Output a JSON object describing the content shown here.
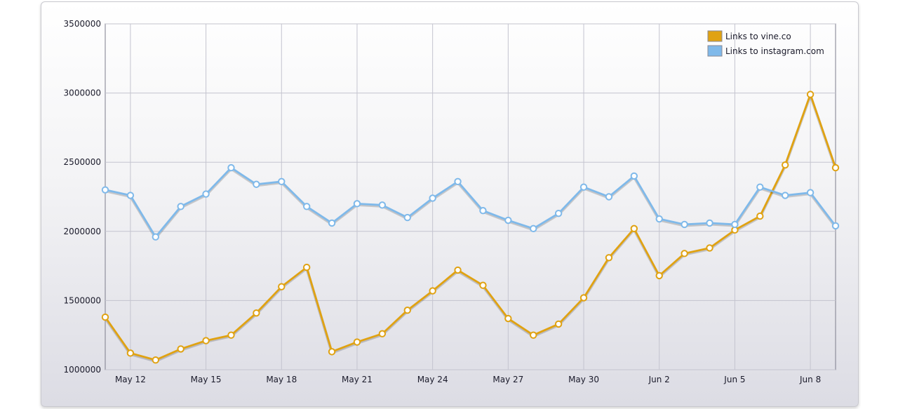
{
  "chart_data": {
    "type": "line",
    "title": "",
    "xlabel": "",
    "ylabel": "",
    "x": [
      "May 11",
      "May 12",
      "May 13",
      "May 14",
      "May 15",
      "May 16",
      "May 17",
      "May 18",
      "May 19",
      "May 20",
      "May 21",
      "May 22",
      "May 23",
      "May 24",
      "May 25",
      "May 26",
      "May 27",
      "May 28",
      "May 29",
      "May 30",
      "May 31",
      "Jun 1",
      "Jun 2",
      "Jun 3",
      "Jun 4",
      "Jun 5",
      "Jun 6",
      "Jun 7",
      "Jun 8",
      "Jun 9"
    ],
    "x_ticks": [
      "May 12",
      "May 15",
      "May 18",
      "May 21",
      "May 24",
      "May 27",
      "May 30",
      "Jun 2",
      "Jun 5",
      "Jun 8"
    ],
    "y_ticks": [
      "1000000",
      "1500000",
      "2000000",
      "2500000",
      "3000000",
      "3500000"
    ],
    "ylim": [
      1000000,
      3500000
    ],
    "grid": true,
    "legend_position": "top-right",
    "series": [
      {
        "name": "Links to vine.co",
        "color": "#e0a212",
        "values": [
          1380000,
          1120000,
          1070000,
          1150000,
          1210000,
          1250000,
          1410000,
          1600000,
          1740000,
          1130000,
          1200000,
          1260000,
          1430000,
          1570000,
          1720000,
          1610000,
          1370000,
          1250000,
          1330000,
          1520000,
          1810000,
          2020000,
          1680000,
          1840000,
          1880000,
          2010000,
          2110000,
          2480000,
          2990000,
          2460000
        ]
      },
      {
        "name": "Links to instagram.com",
        "color": "#7fb9ea",
        "values": [
          2300000,
          2260000,
          1960000,
          2180000,
          2270000,
          2460000,
          2340000,
          2360000,
          2180000,
          2060000,
          2200000,
          2190000,
          2100000,
          2240000,
          2360000,
          2150000,
          2080000,
          2020000,
          2130000,
          2320000,
          2250000,
          2400000,
          2090000,
          2050000,
          2060000,
          2050000,
          2320000,
          2260000,
          2280000,
          2040000
        ]
      }
    ]
  }
}
